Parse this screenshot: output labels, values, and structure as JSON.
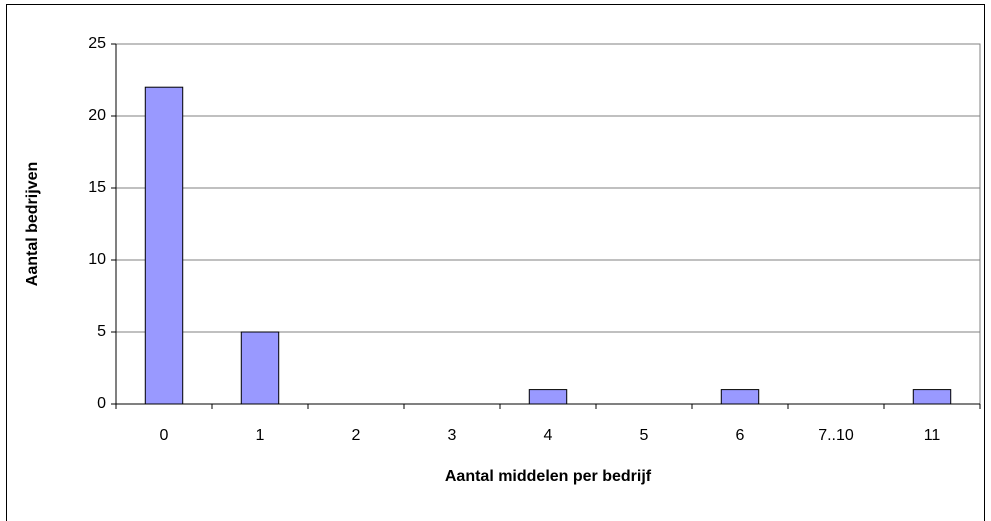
{
  "chart_data": {
    "type": "bar",
    "xlabel": "Aantal middelen per bedrijf",
    "ylabel": "Aantal bedrijven",
    "categories": [
      "0",
      "1",
      "2",
      "3",
      "4",
      "5",
      "6",
      "7..10",
      "11"
    ],
    "values": [
      22,
      5,
      0,
      0,
      1,
      0,
      1,
      0,
      1
    ],
    "color": "#9999ff",
    "ylim": [
      0,
      25
    ],
    "yticks": [
      0,
      5,
      10,
      15,
      20,
      25
    ],
    "grid": true
  }
}
